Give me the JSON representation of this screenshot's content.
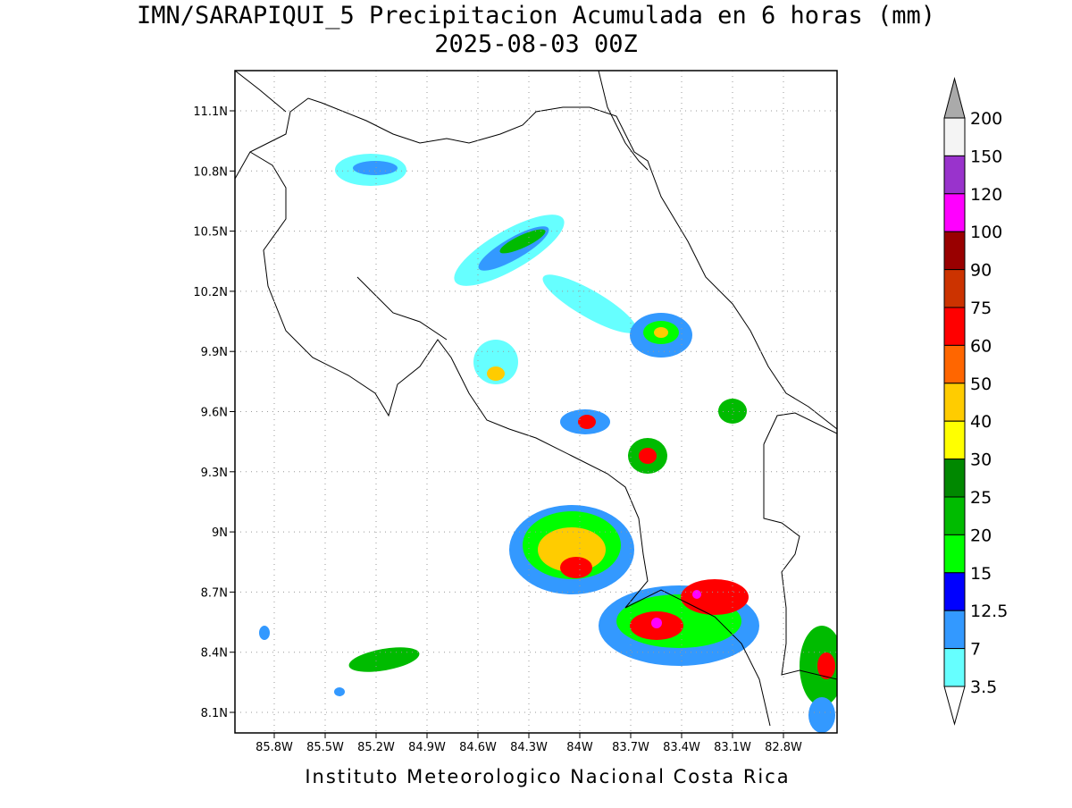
{
  "title": "IMN/SARAPIQUI_5 Precipitacion Acumulada en 6 horas (mm)",
  "subtitle": "2025-08-03 00Z",
  "x_axis": {
    "ticks": [
      "85.8W",
      "85.5W",
      "85.2W",
      "84.9W",
      "84.6W",
      "84.3W",
      "84W",
      "83.7W",
      "83.4W",
      "83.1W",
      "82.8W"
    ]
  },
  "y_axis": {
    "ticks": [
      "11.1N",
      "10.8N",
      "10.5N",
      "10.2N",
      "9.9N",
      "9.6N",
      "9.3N",
      "9N",
      "8.7N",
      "8.4N",
      "8.1N"
    ]
  },
  "colorbar": {
    "labels": [
      200,
      150,
      120,
      100,
      90,
      75,
      60,
      50,
      40,
      30,
      25,
      20,
      15,
      12.5,
      7,
      3.5
    ],
    "colors": [
      "#f4f4f4",
      "#9933cc",
      "#ff00ff",
      "#990000",
      "#cc3300",
      "#ff0000",
      "#ff6600",
      "#ffcc00",
      "#ffff00",
      "#008800",
      "#00bb00",
      "#00ff00",
      "#0000ff",
      "#3399ff",
      "#66ffff"
    ],
    "over_color": "#aaaaaa",
    "under_color": "#ffffff"
  },
  "footer": "Instituto Meteorologico Nacional Costa Rica"
}
